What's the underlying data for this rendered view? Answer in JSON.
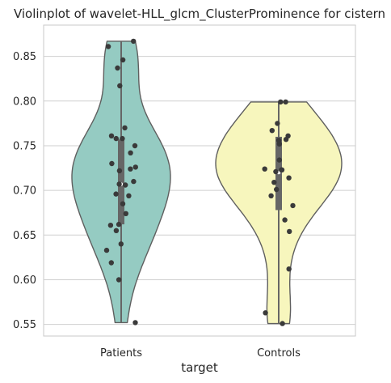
{
  "chart_data": {
    "type": "violin",
    "title": "Violinplot of wavelet-HLL_glcm_ClusterProminence for cistern",
    "xlabel": "target",
    "ylabel": "",
    "categories": [
      "Patients",
      "Controls"
    ],
    "ylim": [
      0.537,
      0.885
    ],
    "yticks": [
      0.55,
      0.6,
      0.65,
      0.7,
      0.75,
      0.8,
      0.85
    ],
    "ytick_labels": [
      "0.55",
      "0.60",
      "0.65",
      "0.70",
      "0.75",
      "0.80",
      "0.85"
    ],
    "grid": true,
    "colors": {
      "Patients": "#95cbc2",
      "Controls": "#f7f6bd",
      "outline": "#5f5f5f",
      "points": "#3a3a3a",
      "grid": "#cfcfcf"
    },
    "series": [
      {
        "name": "Patients",
        "min": 0.552,
        "max": 0.867,
        "q1": 0.662,
        "median": 0.707,
        "q3": 0.757,
        "points": [
          0.867,
          0.861,
          0.846,
          0.837,
          0.817,
          0.77,
          0.761,
          0.758,
          0.758,
          0.75,
          0.742,
          0.73,
          0.726,
          0.724,
          0.722,
          0.71,
          0.707,
          0.706,
          0.696,
          0.694,
          0.685,
          0.674,
          0.662,
          0.661,
          0.655,
          0.64,
          0.633,
          0.619,
          0.6,
          0.552
        ]
      },
      {
        "name": "Controls",
        "min": 0.551,
        "max": 0.799,
        "q1": 0.678,
        "median": 0.72,
        "q3": 0.76,
        "points": [
          0.799,
          0.799,
          0.775,
          0.767,
          0.761,
          0.757,
          0.756,
          0.752,
          0.734,
          0.724,
          0.723,
          0.723,
          0.721,
          0.714,
          0.709,
          0.701,
          0.694,
          0.683,
          0.667,
          0.654,
          0.612,
          0.563,
          0.551
        ]
      }
    ]
  }
}
